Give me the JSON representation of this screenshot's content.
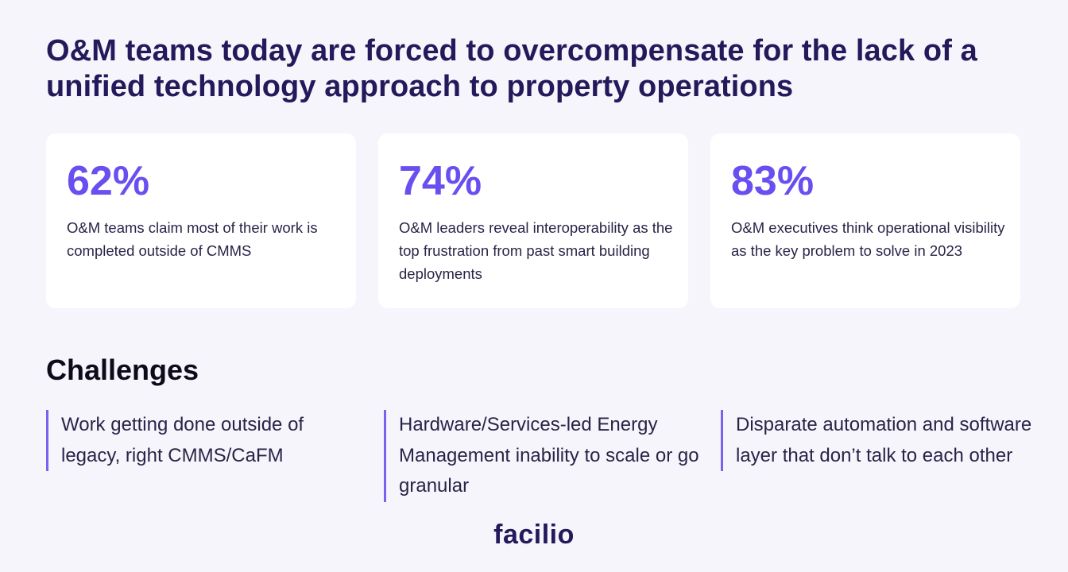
{
  "headline": "O&M teams today are forced to overcompensate for the lack of a unified technology approach to property operations",
  "stats": [
    {
      "value": "62%",
      "description": "O&M teams claim most of their work is completed outside of CMMS"
    },
    {
      "value": "74%",
      "description": "O&M leaders reveal interoperability as the top frustration from past smart building deployments"
    },
    {
      "value": "83%",
      "description": "O&M executives think operational visibility as the key problem to solve in 2023"
    }
  ],
  "challenges": {
    "title": "Challenges",
    "items": [
      "Work getting done outside of legacy, right CMMS/CaFM",
      "Hardware/Services-led Energy Management inability to scale or go granular",
      "Disparate automation and software layer that don’t talk to each other"
    ]
  },
  "brand": {
    "logo_text": "facilio"
  },
  "colors": {
    "background": "#f6f5fc",
    "heading": "#24195a",
    "accent": "#6a4ff0",
    "card": "#ffffff"
  }
}
